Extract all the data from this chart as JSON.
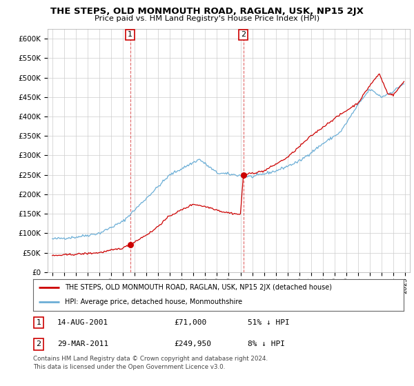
{
  "title": "THE STEPS, OLD MONMOUTH ROAD, RAGLAN, USK, NP15 2JX",
  "subtitle": "Price paid vs. HM Land Registry's House Price Index (HPI)",
  "hpi_color": "#6baed6",
  "price_color": "#cc0000",
  "sale1_date": 2001.62,
  "sale1_price": 71000,
  "sale2_date": 2011.24,
  "sale2_price": 249950,
  "legend_line1": "THE STEPS, OLD MONMOUTH ROAD, RAGLAN, USK, NP15 2JX (detached house)",
  "legend_line2": "HPI: Average price, detached house, Monmouthshire",
  "table_row1_num": "1",
  "table_row1_date": "14-AUG-2001",
  "table_row1_price": "£71,000",
  "table_row1_hpi": "51% ↓ HPI",
  "table_row2_num": "2",
  "table_row2_date": "29-MAR-2011",
  "table_row2_price": "£249,950",
  "table_row2_hpi": "8% ↓ HPI",
  "footnote1": "Contains HM Land Registry data © Crown copyright and database right 2024.",
  "footnote2": "This data is licensed under the Open Government Licence v3.0.",
  "yticks": [
    0,
    50000,
    100000,
    150000,
    200000,
    250000,
    300000,
    350000,
    400000,
    450000,
    500000,
    550000,
    600000
  ],
  "xmin": 1994.6,
  "xmax": 2025.4,
  "ymin": 0,
  "ymax": 625000,
  "vline1_x": 2001.62,
  "vline2_x": 2011.24,
  "hpi_anchors_t": [
    1995.0,
    1997.0,
    1999.0,
    2001.0,
    2003.0,
    2005.0,
    2007.5,
    2009.0,
    2010.5,
    2012.0,
    2014.0,
    2016.0,
    2018.0,
    2019.5,
    2021.0,
    2022.0,
    2023.0,
    2024.0,
    2024.9
  ],
  "hpi_anchors_v": [
    85000,
    90000,
    100000,
    130000,
    190000,
    250000,
    290000,
    255000,
    250000,
    245000,
    260000,
    285000,
    330000,
    360000,
    430000,
    470000,
    450000,
    465000,
    485000
  ],
  "price_anchors_t": [
    1995.0,
    1997.0,
    1999.0,
    2001.0,
    2001.62,
    2003.5,
    2005.0,
    2007.0,
    2008.5,
    2009.5,
    2011.0,
    2011.24,
    2013.0,
    2015.0,
    2017.0,
    2019.0,
    2021.0,
    2022.0,
    2022.8,
    2023.5,
    2024.0,
    2024.9
  ],
  "price_anchors_v": [
    42000,
    46000,
    50000,
    62000,
    71000,
    105000,
    145000,
    175000,
    165000,
    155000,
    148000,
    249950,
    260000,
    295000,
    350000,
    395000,
    435000,
    480000,
    510000,
    460000,
    455000,
    490000
  ]
}
